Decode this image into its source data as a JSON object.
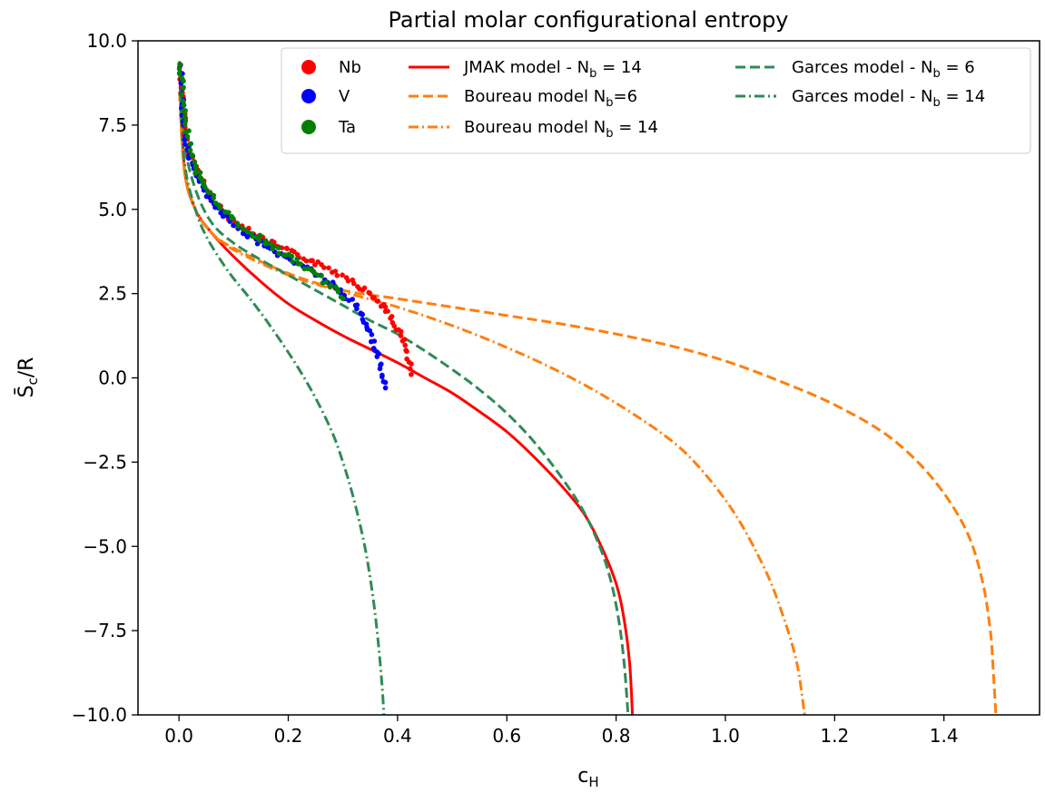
{
  "chart_data": {
    "type": "line",
    "title": "Partial molar configurational entropy",
    "xlabel": "c_H",
    "ylabel": "S̄_c/R",
    "xlim": [
      -0.075,
      1.575
    ],
    "ylim": [
      -10.0,
      10.0
    ],
    "xticks": [
      "0.0",
      "0.2",
      "0.4",
      "0.6",
      "0.8",
      "1.0",
      "1.2",
      "1.4"
    ],
    "yticks": [
      "10.0",
      "7.5",
      "5.0",
      "2.5",
      "0.0",
      "−2.5",
      "−5.0",
      "−7.5",
      "−10.0"
    ],
    "grid": false,
    "legend_position": "top-right",
    "legend": {
      "nb": "Nb",
      "v": "V",
      "ta": "Ta",
      "jmak14": "JMAK model - N_b = 14",
      "boureau6": "Boureau model N_b=6",
      "boureau14": "Boureau model N_b = 14",
      "garces6": "Garces model - N_b = 6",
      "garces14": "Garces model - N_b = 14"
    },
    "scatter_series": [
      {
        "name": "Nb",
        "color": "#ff0000",
        "points": [
          [
            0.003,
            9.3
          ],
          [
            0.01,
            7.4
          ],
          [
            0.02,
            6.7
          ],
          [
            0.04,
            5.9
          ],
          [
            0.06,
            5.3
          ],
          [
            0.08,
            4.95
          ],
          [
            0.1,
            4.65
          ],
          [
            0.12,
            4.45
          ],
          [
            0.15,
            4.15
          ],
          [
            0.18,
            3.9
          ],
          [
            0.2,
            3.75
          ],
          [
            0.24,
            3.5
          ],
          [
            0.28,
            3.2
          ],
          [
            0.31,
            2.95
          ],
          [
            0.34,
            2.6
          ],
          [
            0.37,
            2.2
          ],
          [
            0.39,
            1.75
          ],
          [
            0.41,
            1.15
          ],
          [
            0.42,
            0.6
          ],
          [
            0.425,
            0.1
          ]
        ]
      },
      {
        "name": "V",
        "color": "#0000ff",
        "points": [
          [
            0.003,
            9.2
          ],
          [
            0.01,
            7.2
          ],
          [
            0.02,
            6.5
          ],
          [
            0.04,
            5.8
          ],
          [
            0.06,
            5.2
          ],
          [
            0.08,
            4.85
          ],
          [
            0.1,
            4.55
          ],
          [
            0.12,
            4.3
          ],
          [
            0.15,
            4.0
          ],
          [
            0.18,
            3.7
          ],
          [
            0.2,
            3.55
          ],
          [
            0.23,
            3.3
          ],
          [
            0.26,
            3.0
          ],
          [
            0.29,
            2.65
          ],
          [
            0.32,
            2.2
          ],
          [
            0.34,
            1.7
          ],
          [
            0.355,
            1.15
          ],
          [
            0.365,
            0.55
          ],
          [
            0.375,
            0.0
          ],
          [
            0.378,
            -0.3
          ]
        ]
      },
      {
        "name": "Ta",
        "color": "#008000",
        "points": [
          [
            0.003,
            9.3
          ],
          [
            0.01,
            7.6
          ],
          [
            0.02,
            6.9
          ],
          [
            0.03,
            6.2
          ],
          [
            0.05,
            5.6
          ],
          [
            0.07,
            5.2
          ],
          [
            0.09,
            4.85
          ],
          [
            0.11,
            4.55
          ],
          [
            0.14,
            4.2
          ],
          [
            0.17,
            3.9
          ],
          [
            0.2,
            3.6
          ],
          [
            0.23,
            3.3
          ],
          [
            0.26,
            2.95
          ],
          [
            0.28,
            2.7
          ],
          [
            0.3,
            2.35
          ]
        ]
      }
    ],
    "line_series": [
      {
        "name": "JMAK model - N_b = 14",
        "color": "#ff0000",
        "dash": "solid",
        "points": [
          [
            0.001,
            9.2
          ],
          [
            0.01,
            6.2
          ],
          [
            0.03,
            5.0
          ],
          [
            0.06,
            4.3
          ],
          [
            0.1,
            3.6
          ],
          [
            0.15,
            2.85
          ],
          [
            0.2,
            2.2
          ],
          [
            0.25,
            1.7
          ],
          [
            0.3,
            1.25
          ],
          [
            0.35,
            0.85
          ],
          [
            0.4,
            0.45
          ],
          [
            0.45,
            0.0
          ],
          [
            0.5,
            -0.45
          ],
          [
            0.55,
            -1.0
          ],
          [
            0.6,
            -1.6
          ],
          [
            0.65,
            -2.35
          ],
          [
            0.7,
            -3.2
          ],
          [
            0.74,
            -4.0
          ],
          [
            0.77,
            -4.9
          ],
          [
            0.8,
            -6.1
          ],
          [
            0.815,
            -7.2
          ],
          [
            0.825,
            -8.5
          ],
          [
            0.83,
            -10.0
          ]
        ]
      },
      {
        "name": "Boureau model N_b=6",
        "color": "#ff7f0e",
        "dash": "dashed",
        "points": [
          [
            0.001,
            8.5
          ],
          [
            0.01,
            6.2
          ],
          [
            0.03,
            5.0
          ],
          [
            0.06,
            4.3
          ],
          [
            0.1,
            3.85
          ],
          [
            0.2,
            3.1
          ],
          [
            0.3,
            2.6
          ],
          [
            0.4,
            2.35
          ],
          [
            0.5,
            2.1
          ],
          [
            0.6,
            1.85
          ],
          [
            0.7,
            1.6
          ],
          [
            0.8,
            1.3
          ],
          [
            0.9,
            0.95
          ],
          [
            1.0,
            0.5
          ],
          [
            1.1,
            -0.1
          ],
          [
            1.2,
            -0.8
          ],
          [
            1.3,
            -1.75
          ],
          [
            1.38,
            -3.0
          ],
          [
            1.44,
            -4.5
          ],
          [
            1.47,
            -6.0
          ],
          [
            1.485,
            -7.5
          ],
          [
            1.49,
            -8.6
          ],
          [
            1.495,
            -10.0
          ]
        ]
      },
      {
        "name": "Boureau model N_b = 14",
        "color": "#ff7f0e",
        "dash": "dashdot",
        "points": [
          [
            0.001,
            8.5
          ],
          [
            0.01,
            6.1
          ],
          [
            0.03,
            5.0
          ],
          [
            0.06,
            4.3
          ],
          [
            0.1,
            3.8
          ],
          [
            0.2,
            3.05
          ],
          [
            0.3,
            2.55
          ],
          [
            0.4,
            2.1
          ],
          [
            0.5,
            1.55
          ],
          [
            0.6,
            0.9
          ],
          [
            0.7,
            0.15
          ],
          [
            0.8,
            -0.75
          ],
          [
            0.9,
            -1.85
          ],
          [
            0.96,
            -2.8
          ],
          [
            1.02,
            -4.1
          ],
          [
            1.07,
            -5.6
          ],
          [
            1.1,
            -6.8
          ],
          [
            1.13,
            -8.4
          ],
          [
            1.145,
            -10.0
          ]
        ]
      },
      {
        "name": "Garces model - N_b = 6",
        "color": "#2e8b57",
        "dash": "dashed",
        "points": [
          [
            0.001,
            9.4
          ],
          [
            0.01,
            7.0
          ],
          [
            0.03,
            5.6
          ],
          [
            0.06,
            4.6
          ],
          [
            0.1,
            4.0
          ],
          [
            0.15,
            3.5
          ],
          [
            0.2,
            3.05
          ],
          [
            0.25,
            2.6
          ],
          [
            0.3,
            2.15
          ],
          [
            0.35,
            1.7
          ],
          [
            0.4,
            1.3
          ],
          [
            0.45,
            0.8
          ],
          [
            0.5,
            0.25
          ],
          [
            0.55,
            -0.35
          ],
          [
            0.6,
            -1.05
          ],
          [
            0.65,
            -1.9
          ],
          [
            0.7,
            -2.95
          ],
          [
            0.74,
            -3.95
          ],
          [
            0.77,
            -5.0
          ],
          [
            0.79,
            -6.0
          ],
          [
            0.805,
            -7.2
          ],
          [
            0.815,
            -8.5
          ],
          [
            0.822,
            -10.0
          ]
        ]
      },
      {
        "name": "Garces model - N_b = 14",
        "color": "#2e8b57",
        "dash": "dashdot",
        "points": [
          [
            0.001,
            9.0
          ],
          [
            0.01,
            6.4
          ],
          [
            0.03,
            5.0
          ],
          [
            0.05,
            4.2
          ],
          [
            0.08,
            3.4
          ],
          [
            0.1,
            2.95
          ],
          [
            0.13,
            2.35
          ],
          [
            0.16,
            1.7
          ],
          [
            0.19,
            1.0
          ],
          [
            0.22,
            0.25
          ],
          [
            0.25,
            -0.6
          ],
          [
            0.28,
            -1.6
          ],
          [
            0.3,
            -2.5
          ],
          [
            0.32,
            -3.6
          ],
          [
            0.34,
            -5.0
          ],
          [
            0.355,
            -6.5
          ],
          [
            0.365,
            -7.9
          ],
          [
            0.372,
            -9.2
          ],
          [
            0.375,
            -10.0
          ]
        ]
      }
    ]
  }
}
